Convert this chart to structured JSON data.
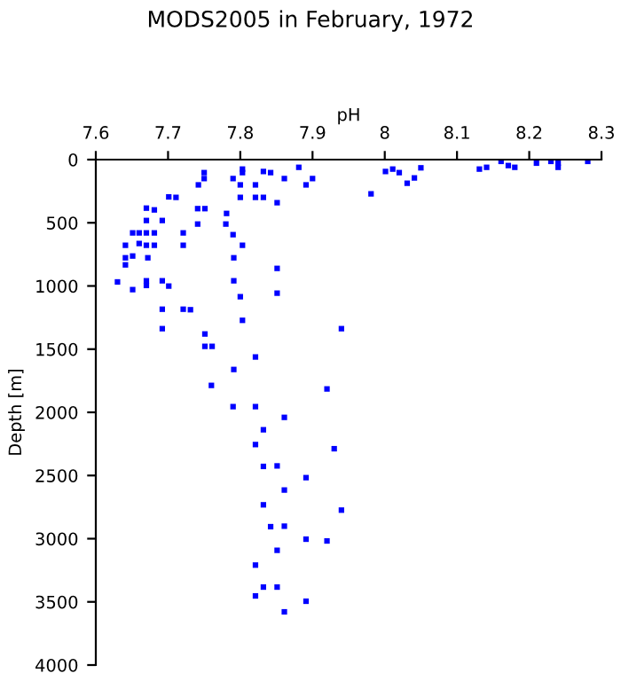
{
  "chart_data": {
    "type": "scatter",
    "title": "MODS2005 in February, 1972",
    "xlabel": "pH",
    "ylabel": "Depth [m]",
    "x": [
      7.75,
      7.75,
      7.742,
      7.79,
      7.8,
      7.803,
      7.803,
      7.821,
      7.832,
      7.842,
      7.861,
      7.881,
      7.891,
      7.9,
      7.981,
      8.001,
      8.011,
      8.02,
      8.031,
      8.041,
      8.05,
      8.131,
      8.141,
      8.161,
      8.171,
      8.18,
      8.21,
      8.23,
      8.24,
      8.24,
      8.281,
      7.701,
      7.711,
      7.741,
      7.751,
      7.781,
      7.8,
      7.821,
      7.832,
      7.851,
      7.67,
      7.681,
      7.67,
      7.692,
      7.741,
      7.78,
      7.651,
      7.66,
      7.67,
      7.681,
      7.721,
      7.79,
      7.641,
      7.66,
      7.67,
      7.681,
      7.721,
      7.803,
      7.641,
      7.651,
      7.672,
      7.791,
      7.641,
      7.851,
      7.63,
      7.651,
      7.67,
      7.67,
      7.692,
      7.701,
      7.791,
      7.8,
      7.851,
      7.692,
      7.721,
      7.731,
      7.692,
      7.803,
      7.94,
      7.751,
      7.751,
      7.761,
      7.821,
      7.791,
      7.76,
      7.92,
      7.79,
      7.821,
      7.861,
      7.832,
      7.821,
      7.93,
      7.832,
      7.851,
      7.891,
      7.861,
      7.832,
      7.94,
      7.842,
      7.861,
      7.891,
      7.92,
      7.851,
      7.821,
      7.832,
      7.851,
      7.821,
      7.891,
      7.861
    ],
    "values": [
      103,
      150,
      200,
      150,
      200,
      75,
      103,
      200,
      94,
      103,
      150,
      61,
      200,
      150,
      271,
      94,
      75,
      103,
      187,
      145,
      65,
      75,
      61,
      14,
      47,
      61,
      28,
      14,
      28,
      61,
      14,
      295,
      299,
      388,
      388,
      426,
      299,
      299,
      299,
      341,
      384,
      398,
      482,
      482,
      510,
      510,
      580,
      580,
      580,
      580,
      580,
      594,
      678,
      664,
      678,
      678,
      678,
      678,
      777,
      763,
      777,
      777,
      833,
      861,
      968,
      1029,
      959,
      996,
      959,
      1001,
      959,
      1085,
      1057,
      1184,
      1184,
      1188,
      1338,
      1272,
      1338,
      1380,
      1478,
      1478,
      1562,
      1661,
      1787,
      1815,
      1955,
      1955,
      2040,
      2138,
      2255,
      2288,
      2428,
      2424,
      2517,
      2615,
      2732,
      2774,
      2905,
      2901,
      3004,
      3018,
      3092,
      3209,
      3383,
      3383,
      3453,
      3495,
      3579
    ],
    "color": "#0000ff",
    "marker": "square",
    "grid": false,
    "legend": false,
    "xlim": [
      7.6,
      8.3
    ],
    "xticks": [
      7.6,
      7.7,
      7.8,
      7.9,
      8,
      8.1,
      8.2,
      8.3
    ],
    "ylim": [
      4000,
      0
    ],
    "yticks": [
      0,
      500,
      1000,
      1500,
      2000,
      2500,
      3000,
      3500,
      4000
    ]
  }
}
